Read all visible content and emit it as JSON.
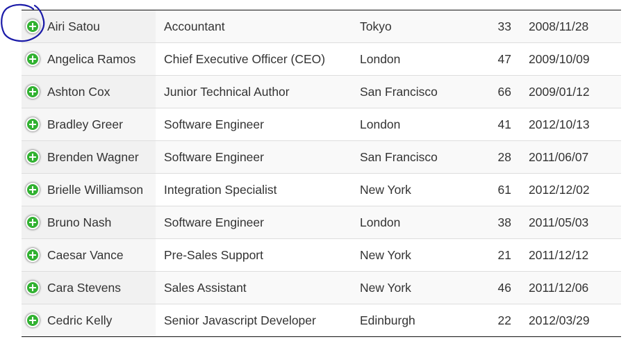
{
  "rows": [
    {
      "name": "Airi Satou",
      "position": "Accountant",
      "office": "Tokyo",
      "age": "33",
      "start_date": "2008/11/28"
    },
    {
      "name": "Angelica Ramos",
      "position": "Chief Executive Officer (CEO)",
      "office": "London",
      "age": "47",
      "start_date": "2009/10/09"
    },
    {
      "name": "Ashton Cox",
      "position": "Junior Technical Author",
      "office": "San Francisco",
      "age": "66",
      "start_date": "2009/01/12"
    },
    {
      "name": "Bradley Greer",
      "position": "Software Engineer",
      "office": "London",
      "age": "41",
      "start_date": "2012/10/13"
    },
    {
      "name": "Brenden Wagner",
      "position": "Software Engineer",
      "office": "San Francisco",
      "age": "28",
      "start_date": "2011/06/07"
    },
    {
      "name": "Brielle Williamson",
      "position": "Integration Specialist",
      "office": "New York",
      "age": "61",
      "start_date": "2012/12/02"
    },
    {
      "name": "Bruno Nash",
      "position": "Software Engineer",
      "office": "London",
      "age": "38",
      "start_date": "2011/05/03"
    },
    {
      "name": "Caesar Vance",
      "position": "Pre-Sales Support",
      "office": "New York",
      "age": "21",
      "start_date": "2011/12/12"
    },
    {
      "name": "Cara Stevens",
      "position": "Sales Assistant",
      "office": "New York",
      "age": "46",
      "start_date": "2011/12/06"
    },
    {
      "name": "Cedric Kelly",
      "position": "Senior Javascript Developer",
      "office": "Edinburgh",
      "age": "22",
      "start_date": "2012/03/29"
    }
  ],
  "icons": {
    "expand": "plus-circle-icon",
    "expand_color": "#31b131"
  },
  "annotation": {
    "shape": "hand-drawn-circle",
    "color": "#1a1aa8"
  }
}
